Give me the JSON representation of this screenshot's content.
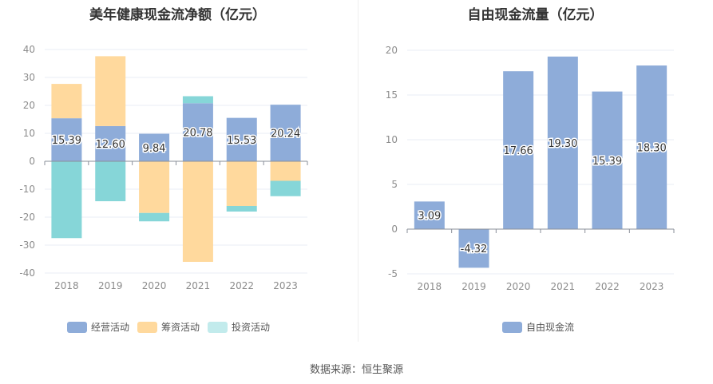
{
  "source": "数据来源：恒生聚源",
  "colors": {
    "operating": "#8eacd9",
    "financing": "#ffd99d",
    "investing": "#86d6d8",
    "fcf": "#8eacd9"
  },
  "chart_data": [
    {
      "type": "bar",
      "stacked": true,
      "title": "美年健康现金流净额（亿元）",
      "categories": [
        "2018",
        "2019",
        "2020",
        "2021",
        "2022",
        "2023"
      ],
      "ylim": [
        -40,
        40
      ],
      "yticks": [
        40,
        30,
        20,
        10,
        0,
        -10,
        -20,
        -30,
        -40
      ],
      "series": [
        {
          "name": "经营活动",
          "values": [
            15.39,
            12.6,
            9.84,
            20.78,
            15.53,
            20.24
          ],
          "labels": [
            "15.39",
            "12.60",
            "9.84",
            "20.78",
            "15.53",
            "20.24"
          ]
        },
        {
          "name": "筹资活动",
          "values": [
            12.3,
            25.0,
            -18.5,
            -36.0,
            -16.0,
            -7.0
          ]
        },
        {
          "name": "投资活动",
          "values": [
            -27.5,
            -14.3,
            -3.0,
            2.5,
            -2.0,
            -5.5
          ]
        }
      ],
      "legend": "bottom"
    },
    {
      "type": "bar",
      "title": "自由现金流量（亿元）",
      "categories": [
        "2018",
        "2019",
        "2020",
        "2021",
        "2022",
        "2023"
      ],
      "ylim": [
        -5,
        20
      ],
      "yticks": [
        20,
        15,
        10,
        5,
        0,
        -5
      ],
      "series": [
        {
          "name": "自由现金流",
          "values": [
            3.09,
            -4.32,
            17.66,
            19.3,
            15.39,
            18.3
          ],
          "labels": [
            "3.09",
            "-4.32",
            "17.66",
            "19.30",
            "15.39",
            "18.30"
          ]
        }
      ],
      "legend": "bottom"
    }
  ]
}
